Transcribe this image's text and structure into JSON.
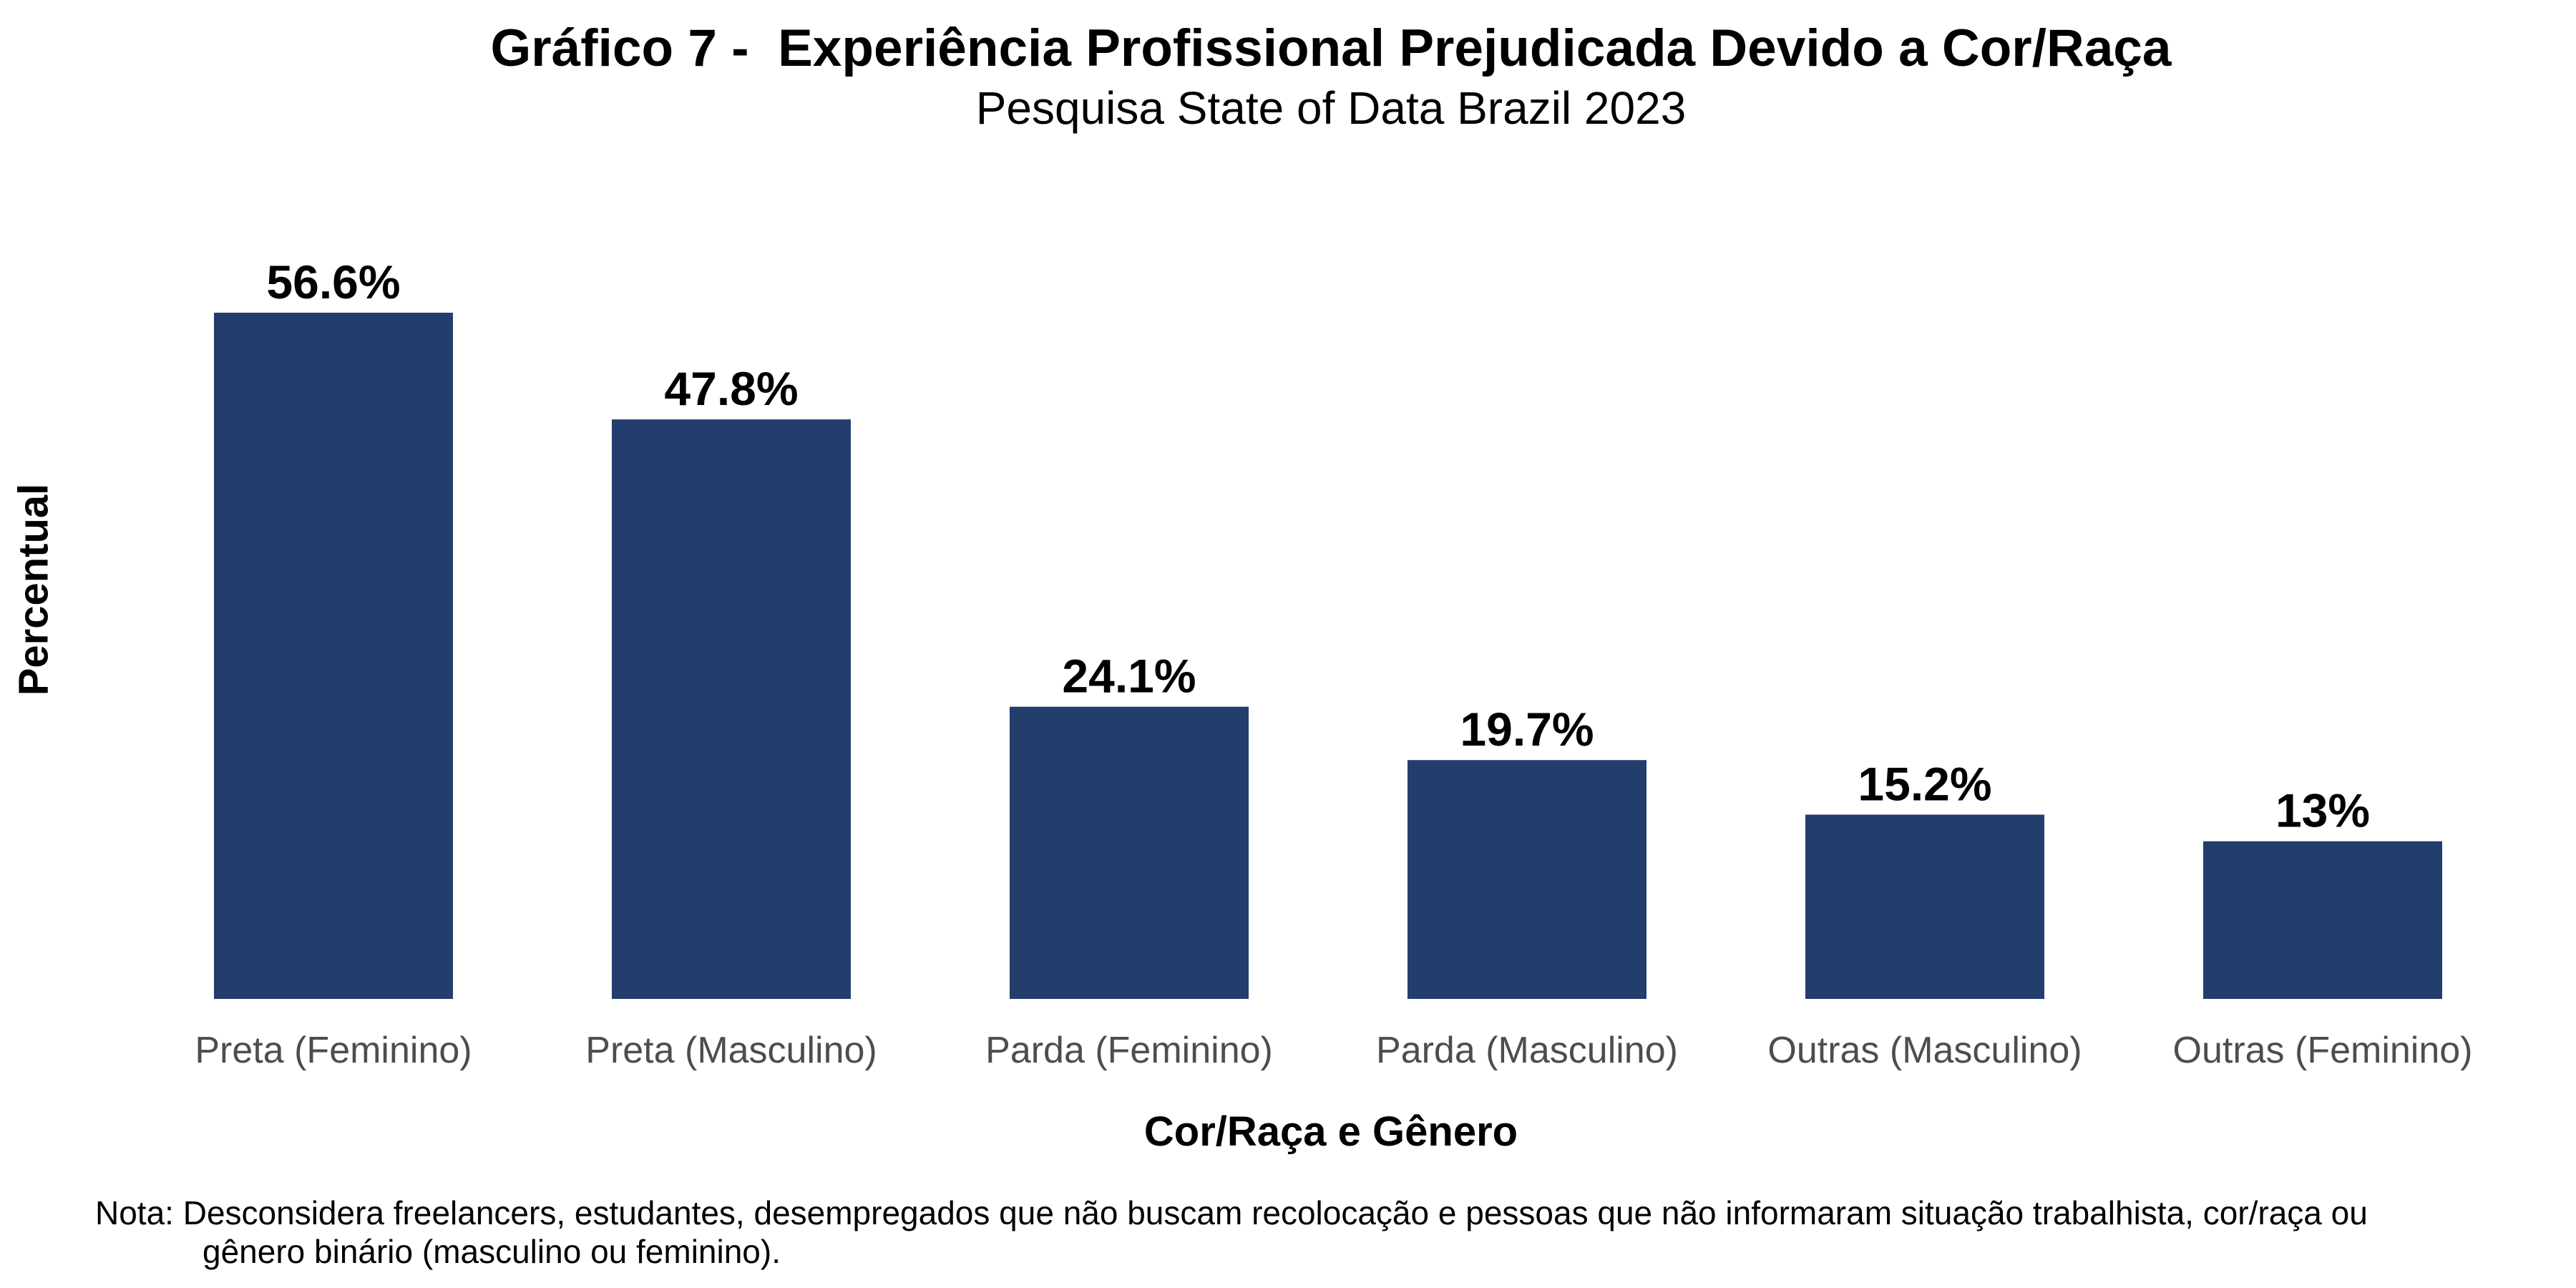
{
  "chart_data": {
    "type": "bar",
    "title": "Gráfico 7 -  Experiência Profissional Prejudicada Devido a Cor/Raça",
    "subtitle": "Pesquisa State of Data Brazil 2023",
    "xlabel": "Cor/Raça e Gênero",
    "ylabel": "Percentual",
    "categories": [
      "Preta (Feminino)",
      "Preta (Masculino)",
      "Parda (Feminino)",
      "Parda (Masculino)",
      "Outras (Masculino)",
      "Outras (Feminino)"
    ],
    "values": [
      56.6,
      47.8,
      24.1,
      19.7,
      15.2,
      13
    ],
    "value_labels": [
      "56.6%",
      "47.8%",
      "24.1%",
      "19.7%",
      "15.2%",
      "13%"
    ],
    "ylim": [
      0,
      56.6
    ],
    "grid": false,
    "legend": "none",
    "colors": {
      "bar": "#233d6d",
      "tick_label": "#4d4d4d",
      "text": "#000000"
    }
  },
  "note": {
    "line1": "Nota: Desconsidera freelancers, estudantes, desempregados que não buscam recolocação e pessoas que não informaram situação trabalhista, cor/raça ou",
    "line2": "gênero binário (masculino ou feminino)."
  }
}
